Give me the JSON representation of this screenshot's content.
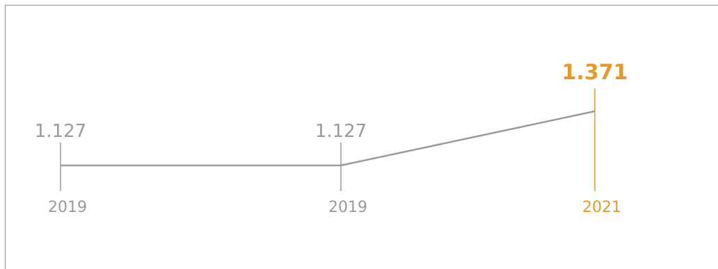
{
  "colors": {
    "line": "#9a9a9a",
    "muted": "#9a9a9a",
    "highlight": "#e69a28"
  },
  "chart_data": {
    "type": "line",
    "title": "",
    "xlabel": "",
    "ylabel": "",
    "grid": false,
    "x": [
      "2019",
      "2019",
      "2021"
    ],
    "values": [
      1127,
      1127,
      1371
    ],
    "value_labels": [
      "1.127",
      "1.127",
      "1.371"
    ],
    "highlight_index": 2
  }
}
